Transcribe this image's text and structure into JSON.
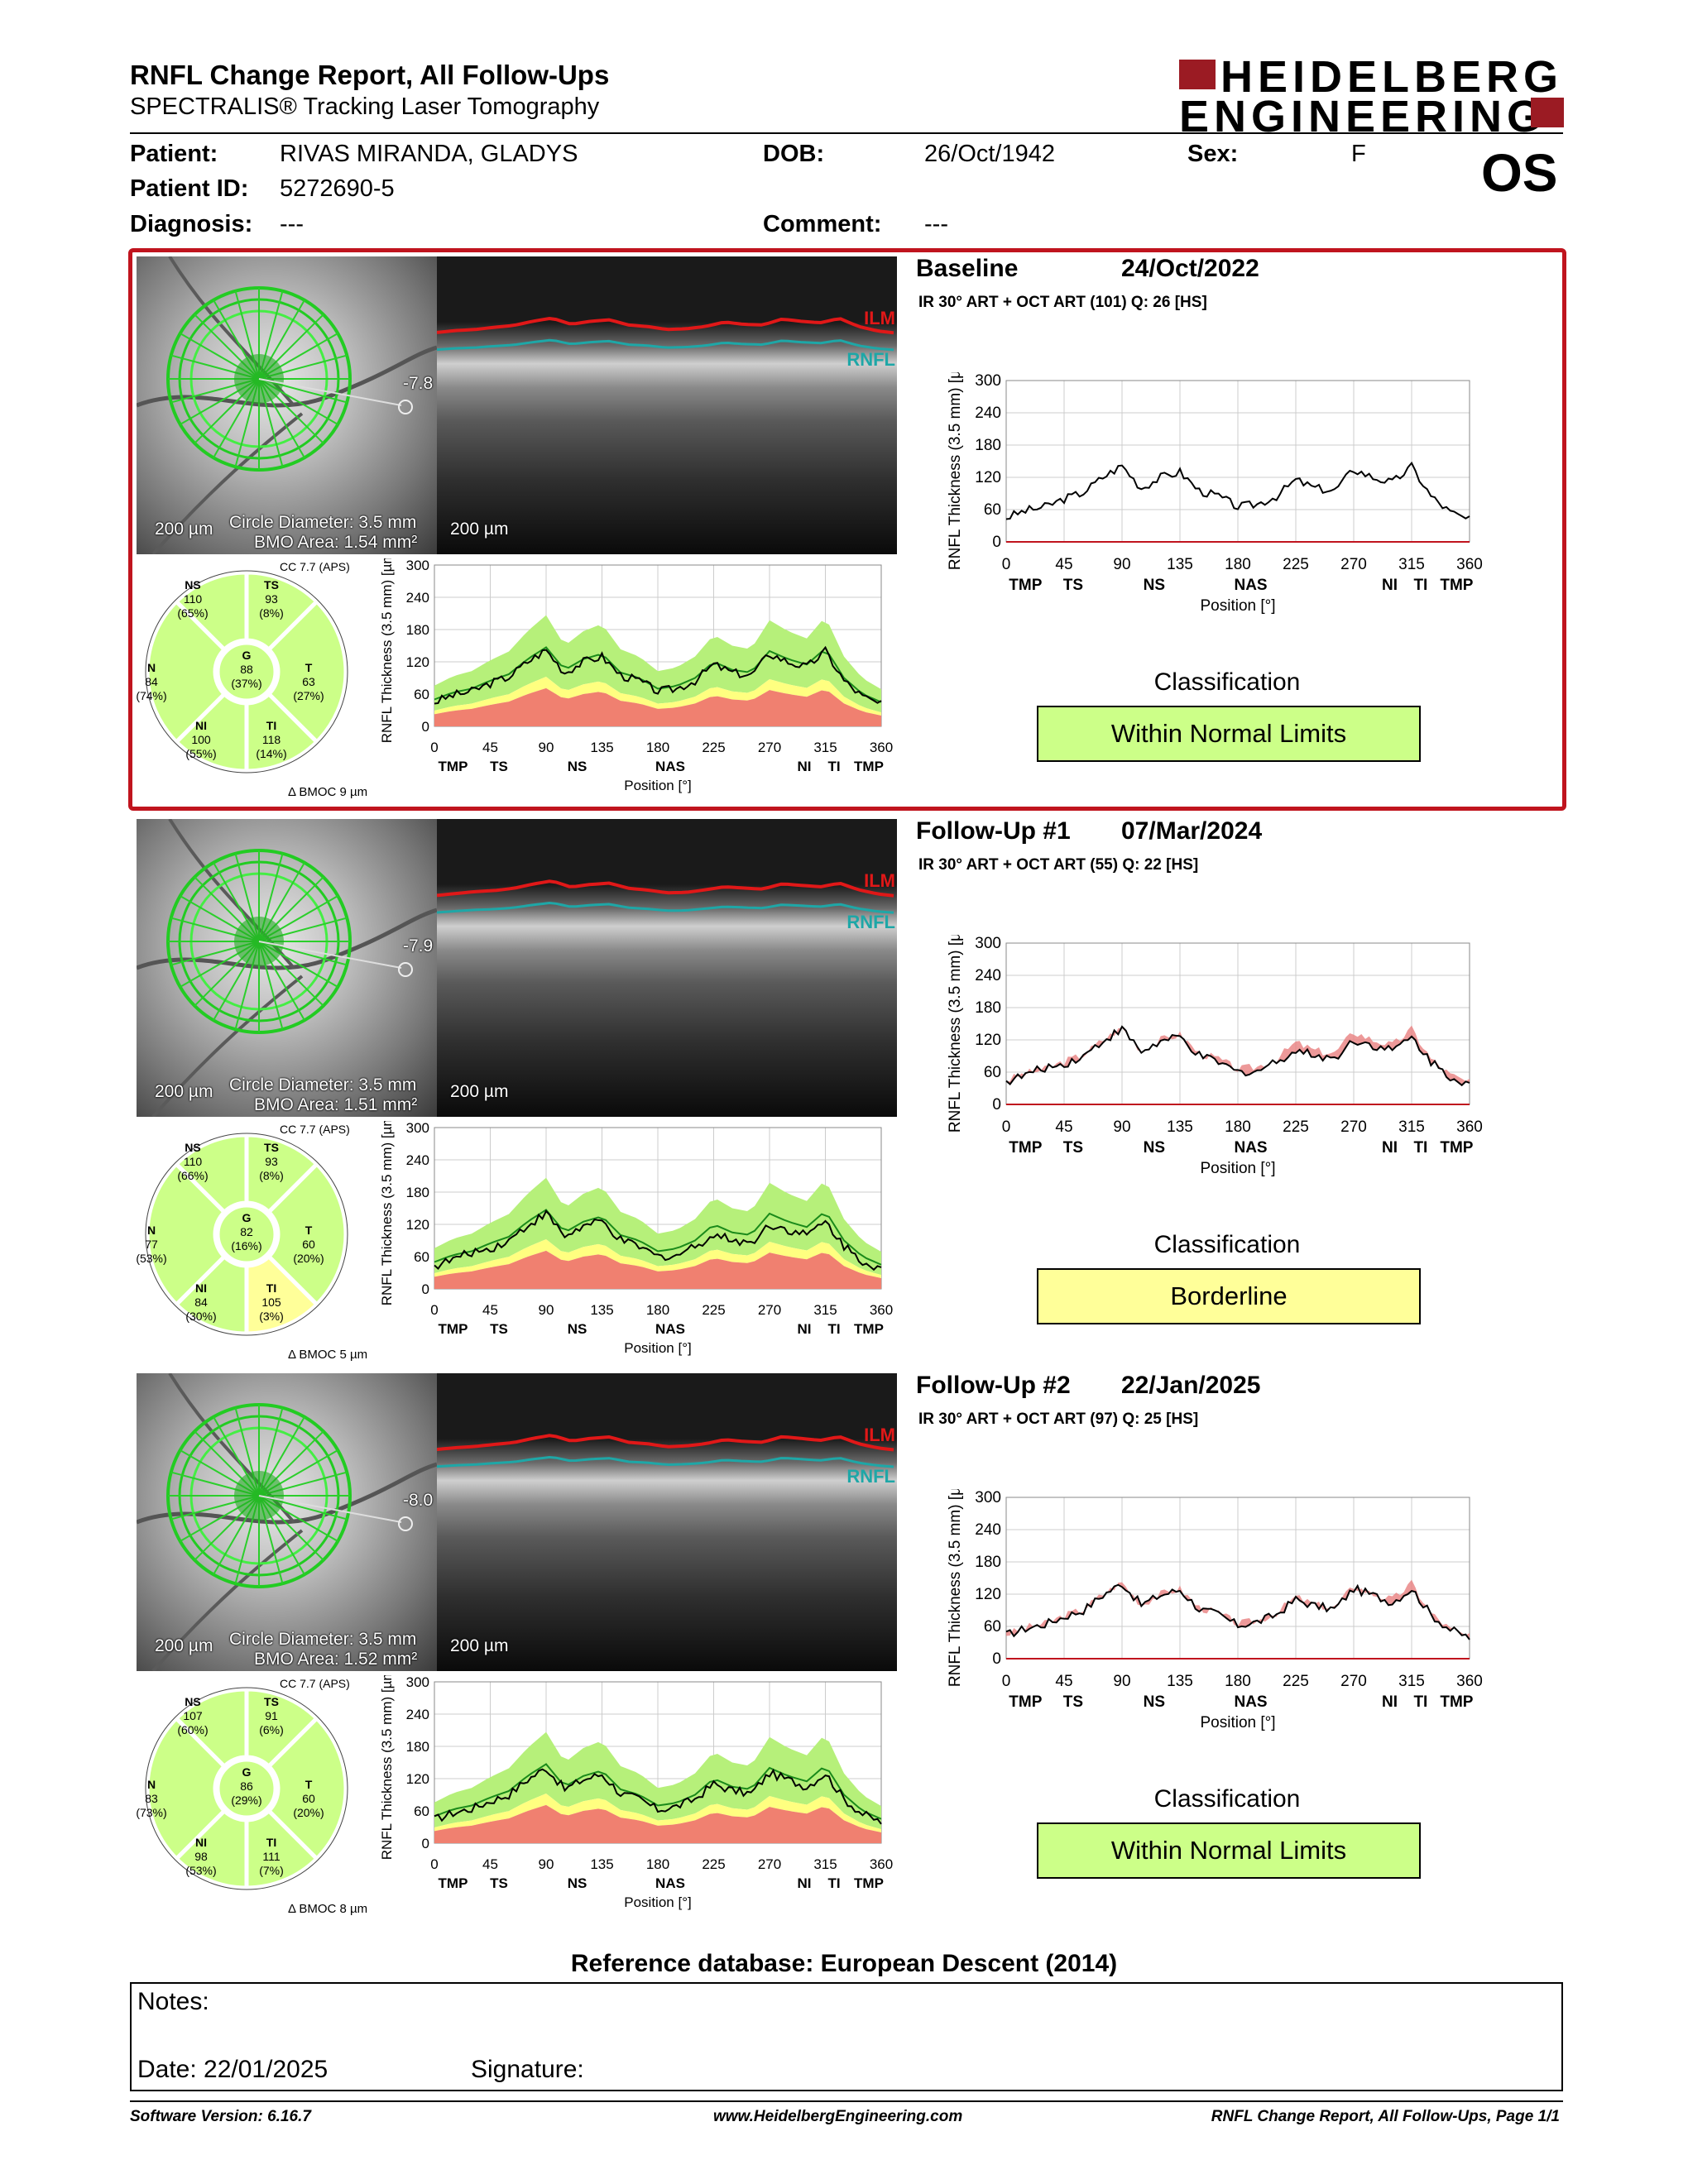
{
  "header": {
    "title": "RNFL Change Report, All Follow-Ups",
    "subtitle": "SPECTRALIS® Tracking Laser Tomography",
    "logo_line1": "HEIDELBERG",
    "logo_line2": "ENGINEERING",
    "eye": "OS"
  },
  "patient": {
    "patient_label": "Patient:",
    "patient_value": "RIVAS MIRANDA, GLADYS",
    "dob_label": "DOB:",
    "dob_value": "26/Oct/1942",
    "sex_label": "Sex:",
    "sex_value": "F",
    "id_label": "Patient ID:",
    "id_value": "5272690-5",
    "diagnosis_label": "Diagnosis:",
    "diagnosis_value": "---",
    "comment_label": "Comment:",
    "comment_value": "---"
  },
  "sections": [
    {
      "name": "Baseline",
      "date": "24/Oct/2022",
      "acq": "IR 30° ART + OCT ART (101) Q: 26 [HS]",
      "scale_fundus": "200 µm",
      "circle_diameter": "Circle Diameter: 3.5 mm",
      "bmo_area": "BMO Area: 1.54 mm²",
      "scale_oct": "200 µm",
      "angle": "-7.8",
      "cc": "CC 7.7 (APS)",
      "bmoc": "9 µm",
      "sectors": {
        "NS": [
          "110",
          "(65%)"
        ],
        "TS": [
          "93",
          "(8%)"
        ],
        "N": [
          "84",
          "(74%)"
        ],
        "G": [
          "88",
          "(37%)"
        ],
        "T": [
          "63",
          "(27%)"
        ],
        "NI": [
          "100",
          "(55%)"
        ],
        "TI": [
          "118",
          "(14%)"
        ]
      },
      "classification_title": "Classification",
      "classification": "Within Normal Limits",
      "class_color": "#ccff88"
    },
    {
      "name": "Follow-Up #1",
      "date": "07/Mar/2024",
      "acq": "IR 30° ART + OCT ART (55) Q: 22 [HS]",
      "scale_fundus": "200 µm",
      "circle_diameter": "Circle Diameter: 3.5 mm",
      "bmo_area": "BMO Area: 1.51 mm²",
      "scale_oct": "200 µm",
      "angle": "-7.9",
      "cc": "CC 7.7 (APS)",
      "bmoc": "5 µm",
      "sectors": {
        "NS": [
          "110",
          "(66%)"
        ],
        "TS": [
          "93",
          "(8%)"
        ],
        "N": [
          "77",
          "(53%)"
        ],
        "G": [
          "82",
          "(16%)"
        ],
        "T": [
          "60",
          "(20%)"
        ],
        "NI": [
          "84",
          "(30%)"
        ],
        "TI": [
          "105",
          "(3%)"
        ]
      },
      "classification_title": "Classification",
      "classification": "Borderline",
      "class_color": "#ffff99"
    },
    {
      "name": "Follow-Up #2",
      "date": "22/Jan/2025",
      "acq": "IR 30° ART + OCT ART (97) Q: 25 [HS]",
      "scale_fundus": "200 µm",
      "circle_diameter": "Circle Diameter: 3.5 mm",
      "bmo_area": "BMO Area: 1.52 mm²",
      "scale_oct": "200 µm",
      "angle": "-8.0",
      "cc": "CC 7.7 (APS)",
      "bmoc": "8 µm",
      "sectors": {
        "NS": [
          "107",
          "(60%)"
        ],
        "TS": [
          "91",
          "(6%)"
        ],
        "N": [
          "83",
          "(73%)"
        ],
        "G": [
          "86",
          "(29%)"
        ],
        "T": [
          "60",
          "(20%)"
        ],
        "NI": [
          "98",
          "(53%)"
        ],
        "TI": [
          "111",
          "(7%)"
        ]
      },
      "classification_title": "Classification",
      "classification": "Within Normal Limits",
      "class_color": "#ccff88"
    }
  ],
  "oct_labels": {
    "ilm": "ILM",
    "rnfl": "RNFL"
  },
  "chart_axes": {
    "ylabel": "RNFL Thickness (3.5 mm) [µm]",
    "xlabel": "Position [°]",
    "xticks": [
      "0",
      "45",
      "90",
      "135",
      "180",
      "225",
      "270",
      "315",
      "360"
    ],
    "yticks": [
      "0",
      "60",
      "120",
      "180",
      "240",
      "300"
    ],
    "regions": [
      "TMP",
      "TS",
      "NS",
      "NAS",
      "NI",
      "TI",
      "TMP"
    ]
  },
  "chart_data": [
    {
      "type": "line",
      "name": "Baseline RNFL profile",
      "x": [
        0,
        15,
        30,
        45,
        60,
        75,
        90,
        105,
        120,
        135,
        150,
        165,
        180,
        195,
        210,
        225,
        240,
        255,
        270,
        285,
        300,
        315,
        330,
        345,
        360
      ],
      "y": [
        45,
        58,
        65,
        80,
        92,
        120,
        142,
        100,
        120,
        130,
        95,
        85,
        65,
        70,
        85,
        115,
        100,
        95,
        135,
        120,
        110,
        140,
        85,
        55,
        40
      ],
      "ylim": [
        0,
        300
      ],
      "xlim": [
        0,
        360
      ]
    },
    {
      "type": "line",
      "name": "Follow-Up #1 RNFL profile",
      "x": [
        0,
        15,
        30,
        45,
        60,
        75,
        90,
        105,
        120,
        135,
        150,
        165,
        180,
        195,
        210,
        225,
        240,
        255,
        270,
        285,
        300,
        315,
        330,
        345,
        360
      ],
      "y": [
        42,
        55,
        68,
        75,
        90,
        118,
        140,
        98,
        116,
        125,
        90,
        78,
        60,
        62,
        80,
        100,
        92,
        85,
        120,
        110,
        100,
        125,
        80,
        52,
        38
      ],
      "ylim": [
        0,
        300
      ],
      "xlim": [
        0,
        360
      ]
    },
    {
      "type": "line",
      "name": "Follow-Up #2 RNFL profile",
      "x": [
        0,
        15,
        30,
        45,
        60,
        75,
        90,
        105,
        120,
        135,
        150,
        165,
        180,
        195,
        210,
        225,
        240,
        255,
        270,
        285,
        300,
        315,
        330,
        345,
        360
      ],
      "y": [
        44,
        56,
        64,
        78,
        90,
        118,
        140,
        100,
        118,
        128,
        92,
        82,
        62,
        68,
        82,
        110,
        98,
        92,
        130,
        118,
        105,
        130,
        82,
        54,
        39
      ],
      "ylim": [
        0,
        300
      ],
      "xlim": [
        0,
        360
      ]
    }
  ],
  "reference": "Reference database: European Descent (2014)",
  "notes": {
    "notes_label": "Notes:",
    "date_label": "Date: 22/01/2025",
    "signature_label": "Signature:"
  },
  "footer": {
    "left": "Software Version: 6.16.7",
    "center": "www.HeidelbergEngineering.com",
    "right": "RNFL Change Report, All Follow-Ups, Page 1/1"
  }
}
